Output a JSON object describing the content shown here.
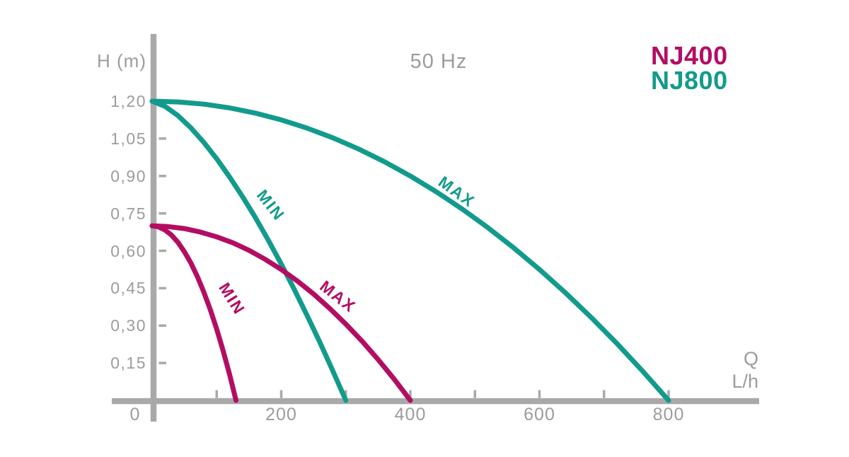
{
  "colors": {
    "nj400": "#b30d63",
    "nj800": "#129b8c",
    "axis": "#a9a9a9",
    "tick_text": "#9c9c9c"
  },
  "chart_data": {
    "type": "line",
    "title": "50 Hz",
    "ylabel": "H (m)",
    "xlabel_line1": "Q",
    "xlabel_line2": "L/h",
    "xlim": [
      0,
      940
    ],
    "ylim": [
      0,
      1.47
    ],
    "grid": false,
    "legend_position": "top-right",
    "legend": [
      {
        "label": "NJ400",
        "color": "#b30d63"
      },
      {
        "label": "NJ800",
        "color": "#129b8c"
      }
    ],
    "y_ticks": [
      {
        "v": 1.2,
        "label": "1,20"
      },
      {
        "v": 1.05,
        "label": "1,05"
      },
      {
        "v": 0.9,
        "label": "0,90"
      },
      {
        "v": 0.75,
        "label": "0,75"
      },
      {
        "v": 0.6,
        "label": "0,60"
      },
      {
        "v": 0.45,
        "label": "0,45"
      },
      {
        "v": 0.3,
        "label": "0,30"
      },
      {
        "v": 0.15,
        "label": "0,15"
      }
    ],
    "x_ticks": [
      {
        "v": 0,
        "label": "0"
      },
      {
        "v": 100,
        "label": ""
      },
      {
        "v": 200,
        "label": "200"
      },
      {
        "v": 300,
        "label": ""
      },
      {
        "v": 400,
        "label": "400"
      },
      {
        "v": 500,
        "label": ""
      },
      {
        "v": 600,
        "label": "600"
      },
      {
        "v": 700,
        "label": ""
      },
      {
        "v": 800,
        "label": "800"
      }
    ],
    "series": [
      {
        "name": "NJ800 MAX",
        "pump": "NJ800",
        "variant": "MAX",
        "color": "#129b8c",
        "points": [
          [
            0,
            1.2
          ],
          [
            40,
            1.197
          ],
          [
            80,
            1.188
          ],
          [
            120,
            1.173
          ],
          [
            160,
            1.152
          ],
          [
            200,
            1.125
          ],
          [
            240,
            1.092
          ],
          [
            280,
            1.053
          ],
          [
            320,
            1.008
          ],
          [
            360,
            0.957
          ],
          [
            400,
            0.9
          ],
          [
            440,
            0.837
          ],
          [
            480,
            0.768
          ],
          [
            520,
            0.693
          ],
          [
            560,
            0.612
          ],
          [
            600,
            0.525
          ],
          [
            640,
            0.432
          ],
          [
            680,
            0.333
          ],
          [
            720,
            0.228
          ],
          [
            760,
            0.117
          ],
          [
            800,
            0
          ]
        ]
      },
      {
        "name": "NJ800 MIN",
        "pump": "NJ800",
        "variant": "MIN",
        "color": "#129b8c",
        "points": [
          [
            0,
            1.2
          ],
          [
            20,
            1.179
          ],
          [
            40,
            1.142
          ],
          [
            60,
            1.093
          ],
          [
            80,
            1.035
          ],
          [
            100,
            0.969
          ],
          [
            120,
            0.896
          ],
          [
            140,
            0.817
          ],
          [
            160,
            0.733
          ],
          [
            180,
            0.642
          ],
          [
            200,
            0.547
          ],
          [
            220,
            0.446
          ],
          [
            240,
            0.341
          ],
          [
            260,
            0.232
          ],
          [
            280,
            0.118
          ],
          [
            300,
            0
          ]
        ]
      },
      {
        "name": "NJ400 MAX",
        "pump": "NJ400",
        "variant": "MAX",
        "color": "#b30d63",
        "points": [
          [
            0,
            0.7
          ],
          [
            25,
            0.697
          ],
          [
            50,
            0.689
          ],
          [
            75,
            0.675
          ],
          [
            100,
            0.656
          ],
          [
            125,
            0.632
          ],
          [
            150,
            0.602
          ],
          [
            175,
            0.566
          ],
          [
            200,
            0.525
          ],
          [
            225,
            0.479
          ],
          [
            250,
            0.427
          ],
          [
            275,
            0.369
          ],
          [
            300,
            0.306
          ],
          [
            325,
            0.238
          ],
          [
            350,
            0.164
          ],
          [
            375,
            0.085
          ],
          [
            400,
            0
          ]
        ]
      },
      {
        "name": "NJ400 MIN",
        "pump": "NJ400",
        "variant": "MIN",
        "color": "#b30d63",
        "points": [
          [
            0,
            0.7
          ],
          [
            10,
            0.696
          ],
          [
            20,
            0.683
          ],
          [
            30,
            0.663
          ],
          [
            40,
            0.634
          ],
          [
            50,
            0.596
          ],
          [
            60,
            0.551
          ],
          [
            70,
            0.497
          ],
          [
            80,
            0.435
          ],
          [
            90,
            0.365
          ],
          [
            100,
            0.286
          ],
          [
            110,
            0.199
          ],
          [
            120,
            0.104
          ],
          [
            130,
            0
          ]
        ]
      }
    ],
    "annotations": [
      {
        "text": "MIN",
        "series": "NJ800 MIN",
        "q": 184,
        "h": 0.783,
        "angle": 52,
        "color": "#129b8c"
      },
      {
        "text": "MAX",
        "series": "NJ800 MAX",
        "q": 472,
        "h": 0.837,
        "angle": 36,
        "color": "#129b8c"
      },
      {
        "text": "MIN",
        "series": "NJ400 MIN",
        "q": 124,
        "h": 0.408,
        "angle": 58,
        "color": "#b30d63"
      },
      {
        "text": "MAX",
        "series": "NJ400 MAX",
        "q": 288,
        "h": 0.417,
        "angle": 38,
        "color": "#b30d63"
      }
    ]
  }
}
